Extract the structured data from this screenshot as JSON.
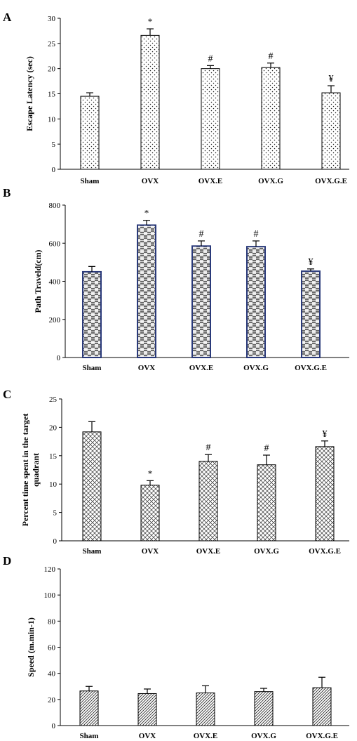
{
  "chart_data": [
    {
      "panel": "A",
      "type": "bar",
      "ylabel": "Escape Latency (sec)",
      "ylim": [
        0,
        30
      ],
      "yticks": [
        0,
        5,
        10,
        15,
        20,
        25,
        30
      ],
      "categories": [
        "Sham",
        "OVX",
        "OVX.E",
        "OVX.G",
        "OVX.G.E"
      ],
      "values": [
        14.5,
        26.6,
        20.0,
        20.2,
        15.2
      ],
      "errors": [
        0.7,
        1.3,
        0.6,
        0.9,
        1.4
      ],
      "annotations": [
        "",
        "*",
        "#",
        "#",
        "¥"
      ],
      "pattern": "dots",
      "bar_edge_color": "#000000"
    },
    {
      "panel": "B",
      "type": "bar",
      "ylabel": "Path Traveld(cm)",
      "ylim": [
        0,
        800
      ],
      "yticks": [
        0,
        200,
        400,
        600,
        800
      ],
      "categories": [
        "Sham",
        "OVX",
        "OVX.E",
        "OVX.G",
        "OVX.G.E"
      ],
      "values": [
        450,
        695,
        585,
        582,
        453
      ],
      "errors": [
        28,
        25,
        27,
        30,
        12
      ],
      "annotations": [
        "",
        "*",
        "#",
        "#",
        "¥"
      ],
      "pattern": "weave",
      "bar_edge_color": "#2a3a7a"
    },
    {
      "panel": "C",
      "type": "bar",
      "ylabel": "Percent time spent in the target quadrant",
      "ylim": [
        0,
        25
      ],
      "yticks": [
        0,
        5,
        10,
        15,
        20,
        25
      ],
      "categories": [
        "Sham",
        "OVX",
        "OVX.E",
        "OVX.G",
        "OVX.G.E"
      ],
      "values": [
        19.2,
        9.8,
        14.0,
        13.4,
        16.6
      ],
      "errors": [
        1.8,
        0.8,
        1.2,
        1.7,
        1.0
      ],
      "annotations": [
        "",
        "*",
        "#",
        "#",
        "¥"
      ],
      "pattern": "crosshatch",
      "bar_edge_color": "#000000"
    },
    {
      "panel": "D",
      "type": "bar",
      "ylabel": "Speed (m.min-1)",
      "ylim": [
        0,
        120
      ],
      "yticks": [
        0,
        20,
        40,
        60,
        80,
        100,
        120
      ],
      "categories": [
        "Sham",
        "OVX",
        "OVX.E",
        "OVX.G",
        "OVX.G.E"
      ],
      "values": [
        26.5,
        24.5,
        25.0,
        26.0,
        29.0
      ],
      "errors": [
        3.5,
        3.5,
        5.5,
        2.5,
        8.0
      ],
      "annotations": [
        "",
        "",
        "",
        "",
        ""
      ],
      "pattern": "diagonal",
      "bar_edge_color": "#000000"
    }
  ]
}
